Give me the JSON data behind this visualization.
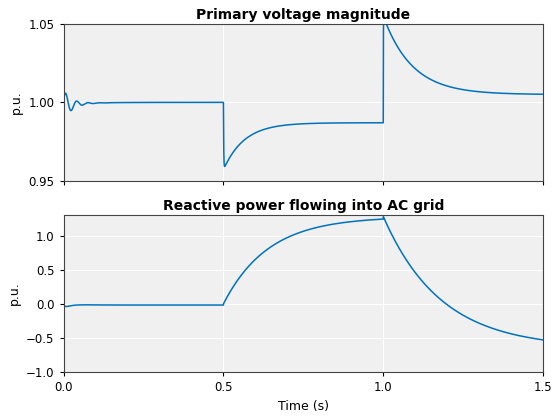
{
  "title1": "Primary voltage magnitude",
  "title2": "Reactive power flowing into AC grid",
  "ylabel1": "p.u.",
  "ylabel2": "p.u.",
  "xlabel": "Time (s)",
  "xlim": [
    0,
    1.5
  ],
  "ylim1": [
    0.95,
    1.05
  ],
  "ylim2": [
    -1,
    1.3
  ],
  "yticks1": [
    0.95,
    1.0,
    1.05
  ],
  "yticks2": [
    -1,
    -0.5,
    0,
    0.5,
    1
  ],
  "xticks": [
    0,
    0.5,
    1.0,
    1.5
  ],
  "line_color": "#0072BD",
  "grid_color": "#b0b0b0",
  "line_width": 1.1,
  "bg_color": "#f0f0f0"
}
